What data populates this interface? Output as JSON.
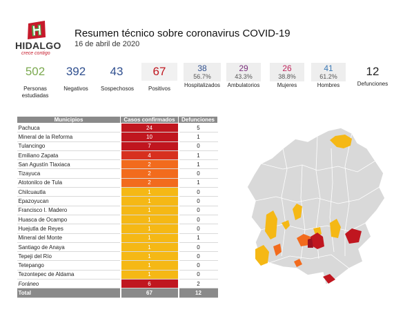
{
  "header": {
    "logo_name": "HIDALGO",
    "logo_slogan": "crece contigo",
    "title": "Resumen técnico sobre coronavirus COVID-19",
    "date": "16 de abril de 2020"
  },
  "colors": {
    "dark_red": "#c0161f",
    "red": "#d7301f",
    "orange": "#f26b1d",
    "yellow": "#f5b815",
    "gray": "#8a8a8a"
  },
  "stats": [
    {
      "value": "502",
      "label_1": "Personas",
      "label_2": "estudiadas",
      "color": "#7ba94f"
    },
    {
      "value": "392",
      "label_1": "Negativos",
      "label_2": "",
      "color": "#2f4f8f"
    },
    {
      "value": "43",
      "label_1": "Sospechosos",
      "label_2": "",
      "color": "#2f4f8f"
    },
    {
      "value": "67",
      "label_1": "Positivos",
      "label_2": "",
      "color": "#c0161f"
    },
    {
      "value": "38",
      "pct": "56.7%",
      "label_1": "Hospitalizados",
      "color": "#2f4f8f"
    },
    {
      "value": "29",
      "pct": "43.3%",
      "label_1": "Ambulatorios",
      "color": "#7b2f7d"
    },
    {
      "value": "26",
      "pct": "38.8%",
      "label_1": "Mujeres",
      "color": "#c0265d"
    },
    {
      "value": "41",
      "pct": "61.2%",
      "label_1": "Hombres",
      "color": "#3b79b5"
    },
    {
      "value": "12",
      "label_1": "Defunciones",
      "label_2": "",
      "color": "#222222"
    }
  ],
  "table": {
    "headers": [
      "Municipios",
      "Casos confirmados",
      "Defunciones"
    ],
    "rows": [
      {
        "name": "Pachuca",
        "cases": "24",
        "deaths": "5",
        "color": "#c0161f"
      },
      {
        "name": "Mineral de la Reforma",
        "cases": "10",
        "deaths": "1",
        "color": "#c0161f"
      },
      {
        "name": "Tulancingo",
        "cases": "7",
        "deaths": "0",
        "color": "#c0161f"
      },
      {
        "name": "Emiliano Zapata",
        "cases": "4",
        "deaths": "1",
        "color": "#d7301f"
      },
      {
        "name": "San Agustín Tlaxiaca",
        "cases": "2",
        "deaths": "1",
        "color": "#f26b1d"
      },
      {
        "name": "Tizayuca",
        "cases": "2",
        "deaths": "0",
        "color": "#f26b1d"
      },
      {
        "name": "Atotonilco de Tula",
        "cases": "2",
        "deaths": "1",
        "color": "#f26b1d"
      },
      {
        "name": "Chilcuautla",
        "cases": "1",
        "deaths": "0",
        "color": "#f5b815"
      },
      {
        "name": "Epazoyucan",
        "cases": "1",
        "deaths": "0",
        "color": "#f5b815"
      },
      {
        "name": "Francisco I. Madero",
        "cases": "1",
        "deaths": "0",
        "color": "#f5b815"
      },
      {
        "name": "Huasca de Ocampo",
        "cases": "1",
        "deaths": "0",
        "color": "#f5b815"
      },
      {
        "name": "Huejutla de Reyes",
        "cases": "1",
        "deaths": "0",
        "color": "#f5b815"
      },
      {
        "name": "Mineral del Monte",
        "cases": "1",
        "deaths": "1",
        "color": "#f5b815"
      },
      {
        "name": "Santiago de Anaya",
        "cases": "1",
        "deaths": "0",
        "color": "#f5b815"
      },
      {
        "name": "Tepeji del Río",
        "cases": "1",
        "deaths": "0",
        "color": "#f5b815"
      },
      {
        "name": "Tetepango",
        "cases": "1",
        "deaths": "0",
        "color": "#f5b815"
      },
      {
        "name": "Tezontepec de Aldama",
        "cases": "1",
        "deaths": "0",
        "color": "#f5b815"
      },
      {
        "name": "Foráneo",
        "cases": "6",
        "deaths": "2",
        "color": "#c0161f",
        "italic": true
      }
    ],
    "total": {
      "name": "Total",
      "cases": "67",
      "deaths": "12"
    }
  }
}
